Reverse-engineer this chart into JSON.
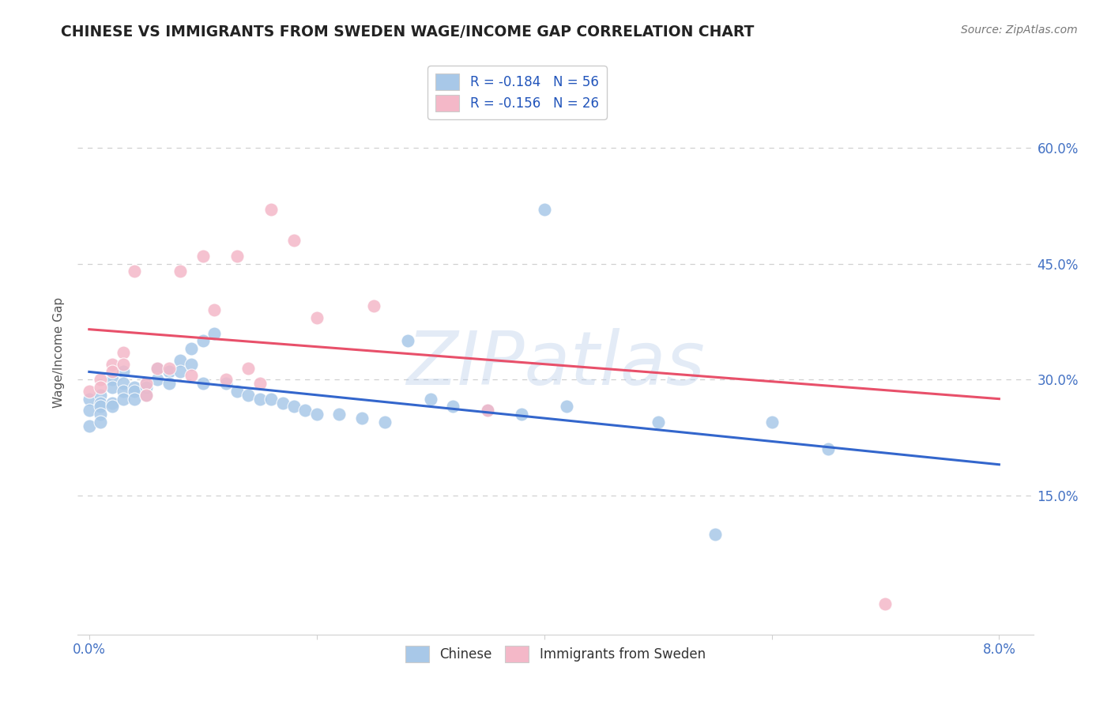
{
  "title": "CHINESE VS IMMIGRANTS FROM SWEDEN WAGE/INCOME GAP CORRELATION CHART",
  "source": "Source: ZipAtlas.com",
  "ylabel": "Wage/Income Gap",
  "legend_blue_label": "R = -0.184   N = 56",
  "legend_pink_label": "R = -0.156   N = 26",
  "legend_bottom_blue": "Chinese",
  "legend_bottom_pink": "Immigrants from Sweden",
  "chinese_x": [
    0.0,
    0.0,
    0.0,
    0.001,
    0.001,
    0.001,
    0.001,
    0.001,
    0.002,
    0.002,
    0.002,
    0.002,
    0.003,
    0.003,
    0.003,
    0.003,
    0.004,
    0.004,
    0.004,
    0.005,
    0.005,
    0.005,
    0.006,
    0.006,
    0.007,
    0.007,
    0.008,
    0.008,
    0.009,
    0.009,
    0.01,
    0.01,
    0.011,
    0.012,
    0.013,
    0.014,
    0.015,
    0.016,
    0.017,
    0.018,
    0.019,
    0.02,
    0.022,
    0.024,
    0.026,
    0.028,
    0.03,
    0.032,
    0.035,
    0.038,
    0.04,
    0.042,
    0.05,
    0.055,
    0.06,
    0.065
  ],
  "chinese_y": [
    0.275,
    0.26,
    0.24,
    0.28,
    0.27,
    0.265,
    0.255,
    0.245,
    0.3,
    0.29,
    0.27,
    0.265,
    0.31,
    0.295,
    0.285,
    0.275,
    0.29,
    0.285,
    0.275,
    0.295,
    0.29,
    0.28,
    0.315,
    0.3,
    0.31,
    0.295,
    0.325,
    0.31,
    0.34,
    0.32,
    0.35,
    0.295,
    0.36,
    0.295,
    0.285,
    0.28,
    0.275,
    0.275,
    0.27,
    0.265,
    0.26,
    0.255,
    0.255,
    0.25,
    0.245,
    0.35,
    0.275,
    0.265,
    0.26,
    0.255,
    0.52,
    0.265,
    0.245,
    0.1,
    0.245,
    0.21
  ],
  "sweden_x": [
    0.0,
    0.001,
    0.001,
    0.002,
    0.002,
    0.003,
    0.003,
    0.004,
    0.005,
    0.005,
    0.006,
    0.007,
    0.008,
    0.009,
    0.01,
    0.011,
    0.012,
    0.013,
    0.014,
    0.015,
    0.016,
    0.018,
    0.02,
    0.025,
    0.035,
    0.07
  ],
  "sweden_y": [
    0.285,
    0.3,
    0.29,
    0.32,
    0.31,
    0.335,
    0.32,
    0.44,
    0.295,
    0.28,
    0.315,
    0.315,
    0.44,
    0.305,
    0.46,
    0.39,
    0.3,
    0.46,
    0.315,
    0.295,
    0.52,
    0.48,
    0.38,
    0.395,
    0.26,
    0.01
  ],
  "blue_line_x": [
    0.0,
    0.08
  ],
  "blue_line_y": [
    0.31,
    0.19
  ],
  "pink_line_x": [
    0.0,
    0.08
  ],
  "pink_line_y": [
    0.365,
    0.275
  ],
  "xlim": [
    -0.001,
    0.083
  ],
  "ylim": [
    -0.03,
    0.7
  ],
  "ytick_positions": [
    0.15,
    0.3,
    0.45,
    0.6
  ],
  "ytick_labels": [
    "15.0%",
    "30.0%",
    "45.0%",
    "60.0%"
  ],
  "xtick_positions": [
    0.0,
    0.02,
    0.04,
    0.06,
    0.08
  ],
  "xtick_labels": [
    "0.0%",
    "",
    "",
    "",
    "8.0%"
  ],
  "blue_scatter_color": "#a8c8e8",
  "pink_scatter_color": "#f4b8c8",
  "blue_line_color": "#3366cc",
  "pink_line_color": "#e8506a",
  "watermark_text": "ZIPatlas",
  "watermark_color": "#b0c8e8",
  "title_color": "#222222",
  "axis_tick_color": "#4472c4",
  "ylabel_color": "#555555",
  "background_color": "#ffffff",
  "grid_color": "#d0d0d0",
  "legend_label_color": "#2255bb"
}
